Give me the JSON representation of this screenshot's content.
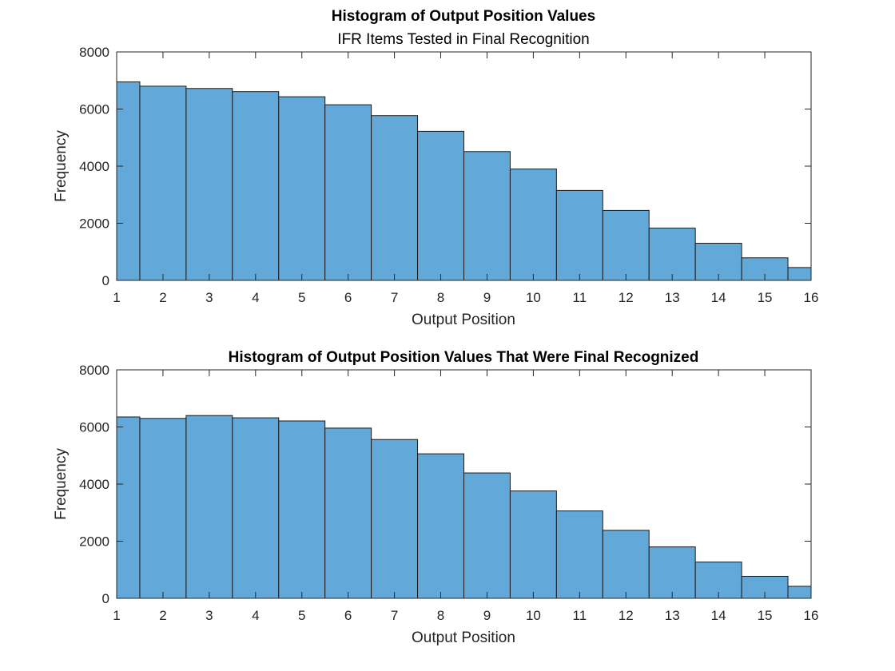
{
  "chart_data": [
    {
      "type": "bar",
      "title": "Histogram of Output Position Values",
      "subtitle": "IFR Items Tested in Final Recognition",
      "xlabel": "Output Position",
      "ylabel": "Frequency",
      "xlim": [
        1,
        16
      ],
      "ylim": [
        0,
        8000
      ],
      "xticks": [
        "1",
        "2",
        "3",
        "4",
        "5",
        "6",
        "7",
        "8",
        "9",
        "10",
        "11",
        "12",
        "13",
        "14",
        "15",
        "16"
      ],
      "yticks": [
        "0",
        "2000",
        "4000",
        "6000",
        "8000"
      ],
      "bin_edges": [
        1,
        1.5,
        2.5,
        3.5,
        4.5,
        5.5,
        6.5,
        7.5,
        8.5,
        9.5,
        10.5,
        11.5,
        12.5,
        13.5,
        14.5,
        15.5,
        16
      ],
      "values": [
        6950,
        6800,
        6720,
        6610,
        6430,
        6150,
        5770,
        5220,
        4510,
        3900,
        3150,
        2450,
        1830,
        1300,
        790,
        450
      ],
      "grid": false,
      "color": "#62a9d9"
    },
    {
      "type": "bar",
      "title": "Histogram of Output Position Values That Were Final Recognized",
      "subtitle": "",
      "xlabel": "Output Position",
      "ylabel": "Frequency",
      "xlim": [
        1,
        16
      ],
      "ylim": [
        0,
        8000
      ],
      "xticks": [
        "1",
        "2",
        "3",
        "4",
        "5",
        "6",
        "7",
        "8",
        "9",
        "10",
        "11",
        "12",
        "13",
        "14",
        "15",
        "16"
      ],
      "yticks": [
        "0",
        "2000",
        "4000",
        "6000",
        "8000"
      ],
      "bin_edges": [
        1,
        1.5,
        2.5,
        3.5,
        4.5,
        5.5,
        6.5,
        7.5,
        8.5,
        9.5,
        10.5,
        11.5,
        12.5,
        13.5,
        14.5,
        15.5,
        16
      ],
      "values": [
        6350,
        6300,
        6400,
        6320,
        6210,
        5960,
        5560,
        5060,
        4390,
        3760,
        3060,
        2380,
        1800,
        1270,
        770,
        420
      ],
      "grid": false,
      "color": "#62a9d9"
    }
  ]
}
